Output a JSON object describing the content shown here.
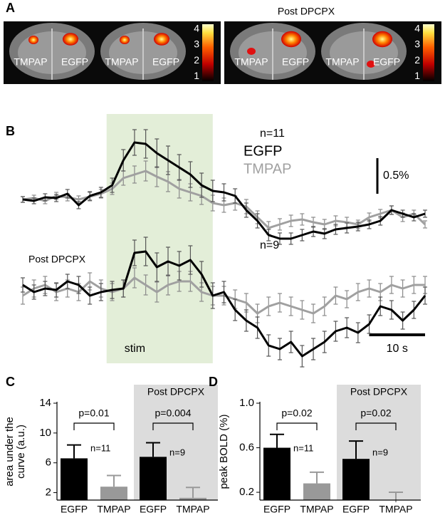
{
  "panel_a": {
    "label": "A",
    "post_label": "Post DPCPX",
    "images": [
      {
        "labels": [
          "TMPAP",
          "EGFP"
        ]
      },
      {
        "labels": [
          "TMPAP",
          "EGFP"
        ]
      },
      {
        "labels": [
          "TMPAP",
          "EGFP"
        ]
      },
      {
        "labels": [
          "TMPAP",
          "EGFP"
        ]
      }
    ],
    "colorbar": {
      "lim": [
        0.7,
        4.3
      ],
      "ticks": [
        1,
        2,
        3,
        4
      ]
    }
  },
  "chart_data": [
    {
      "type": "line",
      "panel_label": "B",
      "annotation": "n=11",
      "x": [
        0,
        2,
        4,
        6,
        8,
        10,
        12,
        14,
        16,
        18,
        20,
        22,
        24,
        26,
        28,
        30,
        32,
        34,
        36,
        38,
        40,
        42,
        44,
        46,
        48,
        50,
        52,
        54,
        56,
        58,
        60,
        62,
        64,
        66,
        68,
        70,
        72
      ],
      "xlim": [
        0,
        72
      ],
      "ylim": [
        -0.8,
        1.2
      ],
      "stim": {
        "label": "stim",
        "start": 15,
        "end": 34
      },
      "scale_bars": {
        "y": {
          "value": 0.5,
          "label": "0.5%"
        },
        "x": {
          "value": 10,
          "label": "10 s"
        }
      },
      "series": [
        {
          "name": "EGFP",
          "color": "#000000",
          "values": [
            0,
            -0.02,
            0.03,
            0.02,
            0.08,
            -0.08,
            0.05,
            0.1,
            0.2,
            0.55,
            0.8,
            0.78,
            0.65,
            0.55,
            0.45,
            0.35,
            0.2,
            0.12,
            0.1,
            0.05,
            -0.15,
            -0.3,
            -0.5,
            -0.55,
            -0.55,
            -0.5,
            -0.45,
            -0.48,
            -0.42,
            -0.4,
            -0.38,
            -0.35,
            -0.3,
            -0.15,
            -0.2,
            -0.25,
            -0.2
          ],
          "errors": [
            0.04,
            0.04,
            0.05,
            0.05,
            0.06,
            0.05,
            0.06,
            0.07,
            0.1,
            0.15,
            0.18,
            0.2,
            0.2,
            0.2,
            0.18,
            0.18,
            0.17,
            0.15,
            0.12,
            0.1,
            0.1,
            0.1,
            0.08,
            0.08,
            0.08,
            0.08,
            0.07,
            0.07,
            0.07,
            0.07,
            0.06,
            0.06,
            0.06,
            0.06,
            0.05,
            0.05,
            0.05
          ]
        },
        {
          "name": "TMPAP",
          "color": "#a0a0a0",
          "values": [
            0,
            0.02,
            -0.02,
            0.05,
            0.03,
            0,
            0.04,
            0.08,
            0.15,
            0.3,
            0.35,
            0.4,
            0.32,
            0.25,
            0.15,
            0.1,
            0.05,
            -0.05,
            -0.08,
            -0.05,
            -0.1,
            -0.25,
            -0.4,
            -0.35,
            -0.3,
            -0.28,
            -0.32,
            -0.35,
            -0.3,
            -0.32,
            -0.35,
            -0.25,
            -0.2,
            -0.15,
            -0.25,
            -0.2,
            -0.35
          ],
          "errors": [
            0.04,
            0.04,
            0.04,
            0.05,
            0.05,
            0.05,
            0.06,
            0.06,
            0.08,
            0.1,
            0.12,
            0.14,
            0.14,
            0.14,
            0.13,
            0.12,
            0.12,
            0.11,
            0.1,
            0.1,
            0.1,
            0.09,
            0.09,
            0.08,
            0.08,
            0.08,
            0.07,
            0.07,
            0.07,
            0.07,
            0.06,
            0.06,
            0.06,
            0.06,
            0.06,
            0.05,
            0.05
          ]
        }
      ]
    },
    {
      "type": "line",
      "subtitle": "Post DPCPX",
      "annotation": "n=9",
      "x": [
        0,
        2,
        4,
        6,
        8,
        10,
        12,
        14,
        16,
        18,
        20,
        22,
        24,
        26,
        28,
        30,
        32,
        34,
        36,
        38,
        40,
        42,
        44,
        46,
        48,
        50,
        52,
        54,
        56,
        58,
        60,
        62,
        64,
        66,
        68,
        70,
        72
      ],
      "xlim": [
        0,
        72
      ],
      "ylim": [
        -1.1,
        0.9
      ],
      "series": [
        {
          "color": "#000000",
          "values": [
            0.05,
            -0.05,
            0,
            -0.02,
            0.1,
            0.05,
            -0.1,
            -0.05,
            -0.02,
            0,
            0.5,
            0.52,
            0.3,
            0.38,
            0.32,
            0.4,
            0.2,
            -0.1,
            -0.05,
            -0.3,
            -0.45,
            -0.55,
            -0.8,
            -0.85,
            -0.75,
            -0.95,
            -0.85,
            -0.75,
            -0.6,
            -0.55,
            -0.62,
            -0.5,
            -0.25,
            -0.3,
            -0.45,
            -0.3,
            -0.1
          ],
          "errors": [
            0.1,
            0.1,
            0.1,
            0.1,
            0.1,
            0.12,
            0.12,
            0.12,
            0.12,
            0.12,
            0.18,
            0.2,
            0.2,
            0.2,
            0.2,
            0.2,
            0.18,
            0.18,
            0.15,
            0.15,
            0.15,
            0.15,
            0.15,
            0.15,
            0.15,
            0.15,
            0.15,
            0.15,
            0.14,
            0.14,
            0.14,
            0.13,
            0.13,
            0.13,
            0.12,
            0.12,
            0.12
          ]
        },
        {
          "color": "#a0a0a0",
          "values": [
            -0.1,
            0,
            0.05,
            -0.05,
            0,
            -0.05,
            0.1,
            0,
            -0.05,
            0,
            0.15,
            0.05,
            -0.05,
            0.05,
            0.1,
            0.1,
            -0.05,
            -0.1,
            -0.1,
            -0.15,
            -0.2,
            -0.35,
            -0.25,
            -0.2,
            -0.25,
            -0.3,
            -0.35,
            -0.25,
            -0.1,
            -0.15,
            -0.05,
            0,
            -0.05,
            0.05,
            0,
            0.05,
            0.05
          ],
          "errors": [
            0.12,
            0.12,
            0.12,
            0.12,
            0.12,
            0.12,
            0.12,
            0.12,
            0.12,
            0.12,
            0.14,
            0.14,
            0.14,
            0.14,
            0.14,
            0.14,
            0.13,
            0.13,
            0.13,
            0.13,
            0.13,
            0.13,
            0.13,
            0.13,
            0.13,
            0.13,
            0.13,
            0.13,
            0.12,
            0.12,
            0.12,
            0.12,
            0.12,
            0.12,
            0.12,
            0.12,
            0.12
          ]
        }
      ]
    },
    {
      "type": "bar",
      "panel_label": "C",
      "ylabel": [
        "area under the",
        "curve (a.u.)"
      ],
      "categories": [
        "EGFP",
        "TMPAP",
        "EGFP",
        "TMPAP"
      ],
      "values": [
        6.6,
        2.8,
        6.8,
        1.3
      ],
      "errors": [
        1.8,
        1.5,
        1.9,
        1.4
      ],
      "colors": [
        "#000000",
        "#999999",
        "#000000",
        "#999999"
      ],
      "ylim": [
        1,
        14
      ],
      "yticks": [
        2,
        6,
        10,
        14
      ],
      "shade_label": "Post DPCPX",
      "p_values": [
        "p=0.01",
        "p=0.004"
      ],
      "n_labels": [
        "n=11",
        "n=9"
      ]
    },
    {
      "type": "bar",
      "panel_label": "D",
      "ylabel": [
        "peak BOLD   (%)"
      ],
      "categories": [
        "EGFP",
        "TMPAP",
        "EGFP",
        "TMPAP"
      ],
      "values": [
        0.6,
        0.28,
        0.5,
        0.11
      ],
      "errors": [
        0.12,
        0.1,
        0.16,
        0.09
      ],
      "colors": [
        "#000000",
        "#999999",
        "#000000",
        "#999999"
      ],
      "ylim": [
        0.13,
        1
      ],
      "yticks": [
        0.2,
        0.6,
        {
          "value": 1,
          "label": "1.0"
        }
      ],
      "shade_label": "Post DPCPX",
      "p_values": [
        "p=0.02",
        "p=0.02"
      ],
      "n_labels": [
        "n=11",
        "n=9"
      ]
    }
  ]
}
